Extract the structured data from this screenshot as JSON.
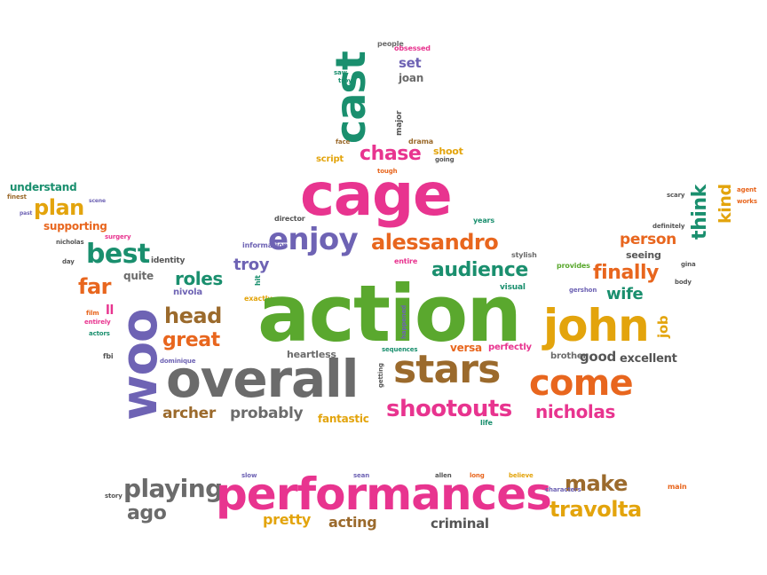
{
  "palette": {
    "pink": "#e8348f",
    "green": "#5aa82e",
    "purple": "#6e63b4",
    "orange": "#e8661e",
    "gold": "#e3a40c",
    "gray": "#555555",
    "teal": "#1a8f6e",
    "brown": "#9b6a2c",
    "darkgray": "#6b6b6b"
  },
  "words": [
    "action",
    "performances",
    "overall",
    "cage",
    "woo",
    "john",
    "stars",
    "come",
    "cast",
    "enjoy",
    "alessandro",
    "shootouts",
    "nicholas",
    "best",
    "plan",
    "great",
    "head",
    "archer",
    "probably",
    "playing",
    "travolta",
    "make",
    "ago",
    "pretty",
    "acting",
    "criminal",
    "finally",
    "person",
    "think",
    "kind",
    "audience",
    "roles",
    "chase",
    "far",
    "fantastic",
    "job",
    "wife",
    "good",
    "excellent",
    "brother",
    "seeing",
    "stylish",
    "years",
    "director",
    "information",
    "tough",
    "going",
    "face",
    "drama",
    "major",
    "saw",
    "troy",
    "people",
    "obsessed",
    "heartless",
    "versa",
    "perfectly",
    "understand",
    "supporting",
    "set",
    "joan",
    "script",
    "shoot",
    "quite",
    "nivola",
    "identity",
    "surgery",
    "nicholas",
    "day",
    "entirely",
    "actors",
    "fbi",
    "dominique",
    "film",
    "ll",
    "entire",
    "exactly",
    "hit",
    "sequences",
    "happened",
    "getting",
    "life",
    "visual",
    "gershon",
    "gina",
    "body",
    "provides",
    "definitely",
    "scary",
    "agent",
    "works",
    "rest",
    "quickly",
    "american",
    "plenty",
    "castor",
    "cold",
    "bomb",
    "furious",
    "manages",
    "finest",
    "scene",
    "past",
    "slow",
    "sean",
    "allen",
    "long",
    "believe",
    "characters",
    "main",
    "story",
    "entertaining",
    "learn",
    "prison",
    "fan"
  ]
}
